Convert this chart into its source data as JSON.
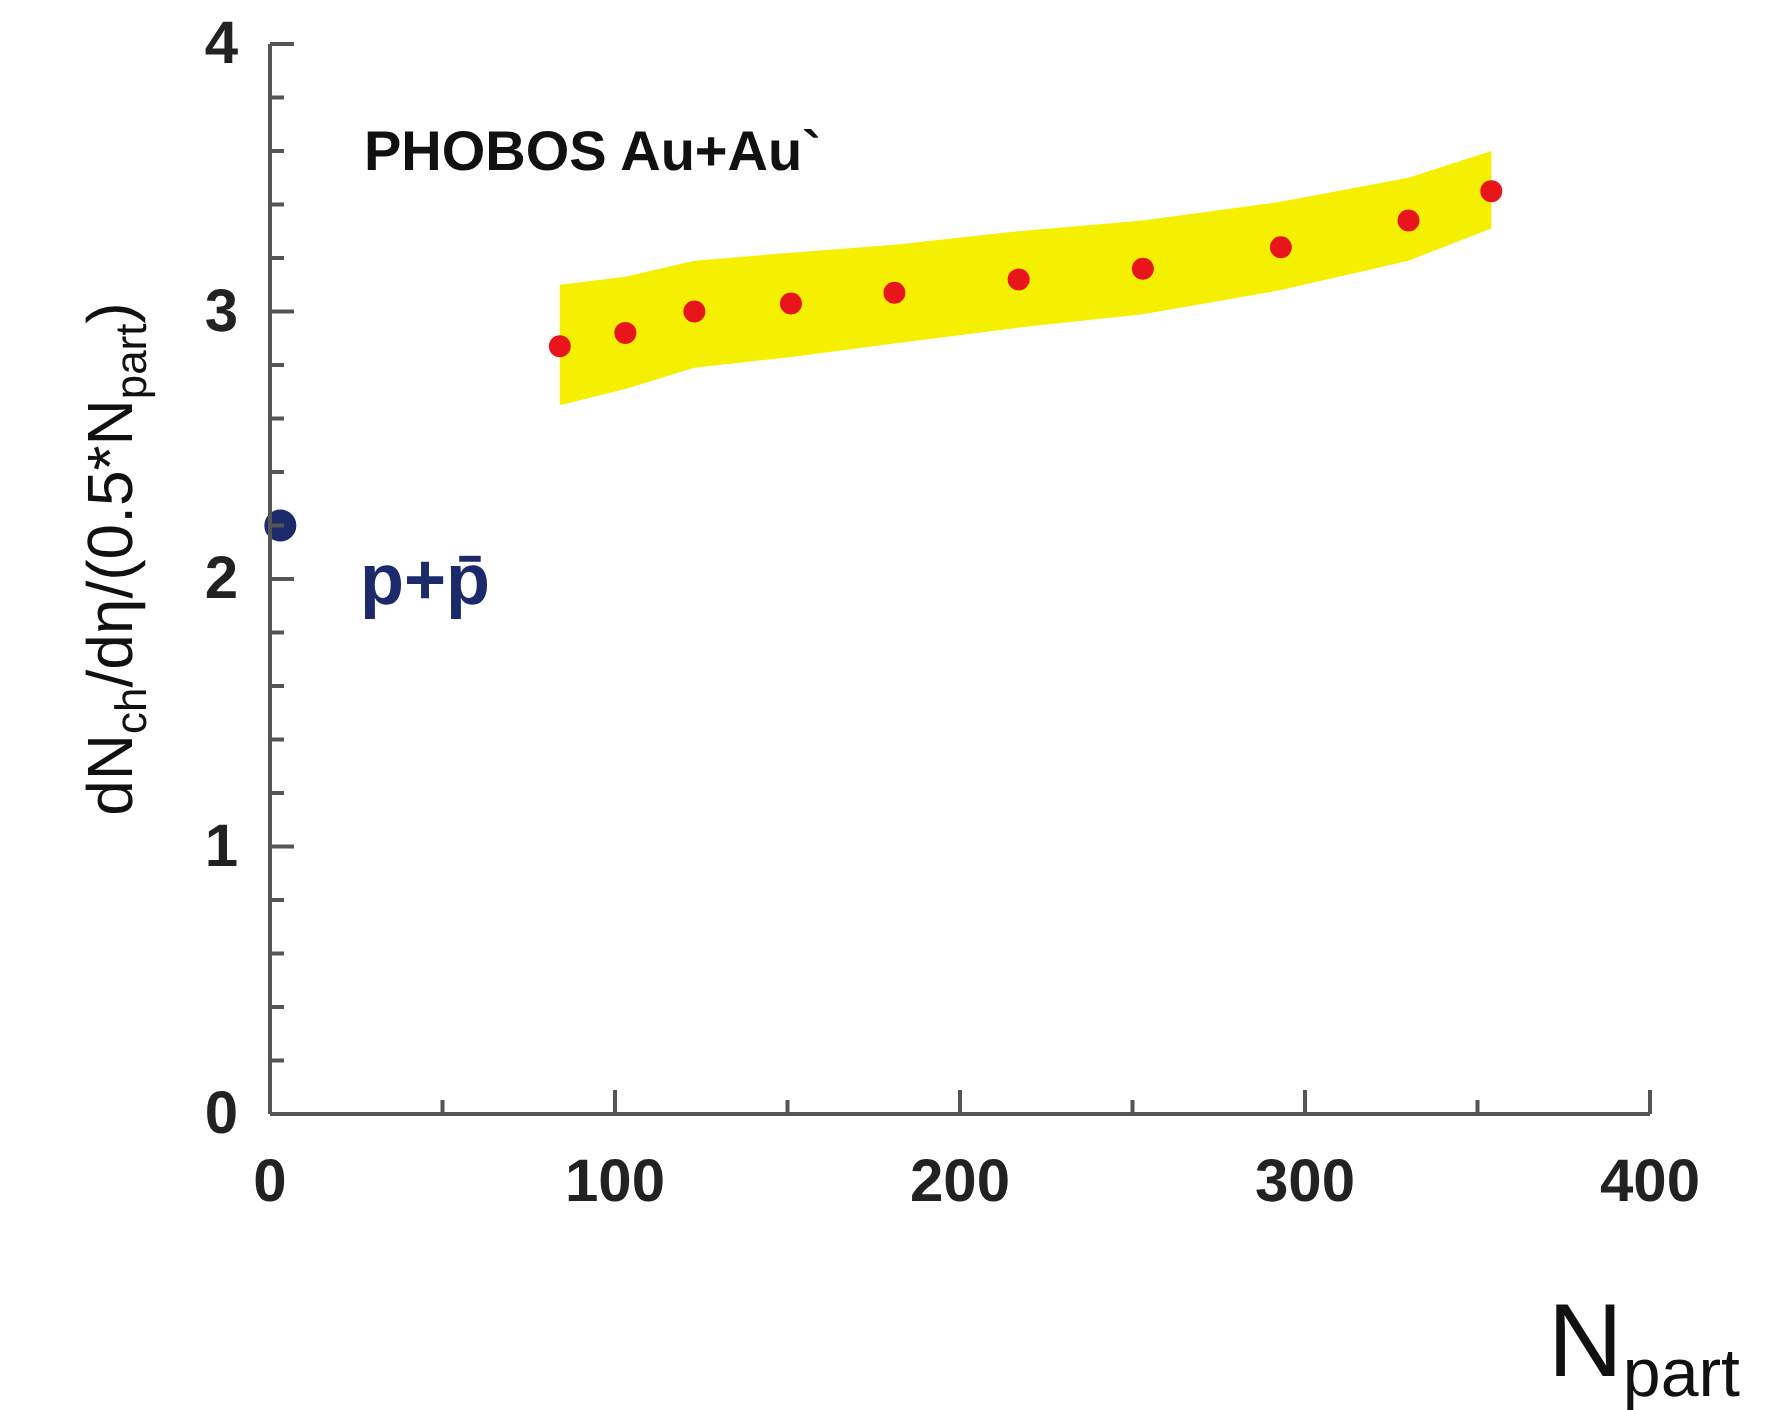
{
  "chart_data": {
    "type": "scatter",
    "title": "PHOBOS Au+Au`",
    "xlabel": "N$_{part}$",
    "ylabel": "dN$_{ch}$/dη/(0.5*N$_{part}$)",
    "xlim": [
      0,
      400
    ],
    "ylim": [
      0,
      4
    ],
    "xticks": [
      0,
      {
        "value": 50,
        "label": null
      },
      100,
      {
        "value": 150,
        "label": null
      },
      200,
      {
        "value": 250,
        "label": null
      },
      300,
      {
        "value": 350,
        "label": null
      },
      400
    ],
    "yticks": [
      0,
      {
        "value": 0.2,
        "label": null
      },
      {
        "value": 0.4,
        "label": null
      },
      {
        "value": 0.6,
        "label": null
      },
      {
        "value": 0.8,
        "label": null
      },
      1,
      {
        "value": 1.2,
        "label": null
      },
      {
        "value": 1.4,
        "label": null
      },
      {
        "value": 1.6,
        "label": null
      },
      {
        "value": 1.8,
        "label": null
      },
      2,
      {
        "value": 2.2,
        "label": null
      },
      {
        "value": 2.4,
        "label": null
      },
      {
        "value": 2.6,
        "label": null
      },
      {
        "value": 2.8,
        "label": null
      },
      3,
      {
        "value": 3.2,
        "label": null
      },
      {
        "value": 3.4,
        "label": null
      },
      {
        "value": 3.6,
        "label": null
      },
      {
        "value": 3.8,
        "label": null
      },
      4
    ],
    "grid": false,
    "marker": "circle",
    "series": [
      {
        "color": "#e8161b",
        "x": [
          84,
          103,
          123,
          151,
          181,
          217,
          253,
          293,
          330,
          354
        ],
        "values": [
          2.87,
          2.92,
          3.0,
          3.03,
          3.07,
          3.12,
          3.16,
          3.24,
          3.34,
          3.45
        ],
        "lower": [
          2.65,
          2.71,
          2.79,
          2.83,
          2.88,
          2.94,
          2.99,
          3.08,
          3.19,
          3.31
        ],
        "upper": [
          3.1,
          3.13,
          3.19,
          3.22,
          3.25,
          3.3,
          3.34,
          3.41,
          3.5,
          3.6
        ]
      },
      {
        "color": "#1c2a6b",
        "x": [
          3
        ],
        "values": [
          2.2
        ]
      }
    ],
    "annotations": [
      "p+p̄"
    ]
  }
}
